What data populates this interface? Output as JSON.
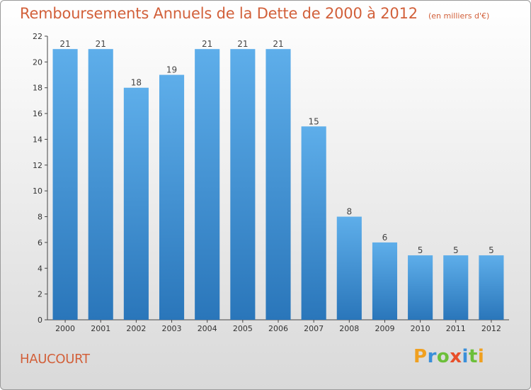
{
  "chart_data": {
    "type": "bar",
    "title": "Remboursements Annuels de la Dette de 2000 à 2012",
    "subtitle": "(en milliers d'€)",
    "categories": [
      "2000",
      "2001",
      "2002",
      "2003",
      "2004",
      "2005",
      "2006",
      "2007",
      "2008",
      "2009",
      "2010",
      "2011",
      "2012"
    ],
    "values": [
      21,
      21,
      18,
      19,
      21,
      21,
      21,
      15,
      8,
      6,
      5,
      5,
      5
    ],
    "ylim": [
      0,
      22
    ],
    "yticks": [
      0,
      2,
      4,
      6,
      8,
      10,
      12,
      14,
      16,
      18,
      20,
      22
    ],
    "grid": false,
    "bar_color": "#3d8fd6"
  },
  "footer": {
    "city": "HAUCOURT",
    "logo_letters": [
      {
        "char": "P",
        "color": "#f0a020"
      },
      {
        "char": "r",
        "color": "#3a8fd9"
      },
      {
        "char": "o",
        "color": "#6cbf3a"
      },
      {
        "char": "x",
        "color": "#e84f2a"
      },
      {
        "char": "i",
        "color": "#3a8fd9"
      },
      {
        "char": "t",
        "color": "#6cbf3a"
      },
      {
        "char": "i",
        "color": "#f0a020"
      }
    ]
  }
}
